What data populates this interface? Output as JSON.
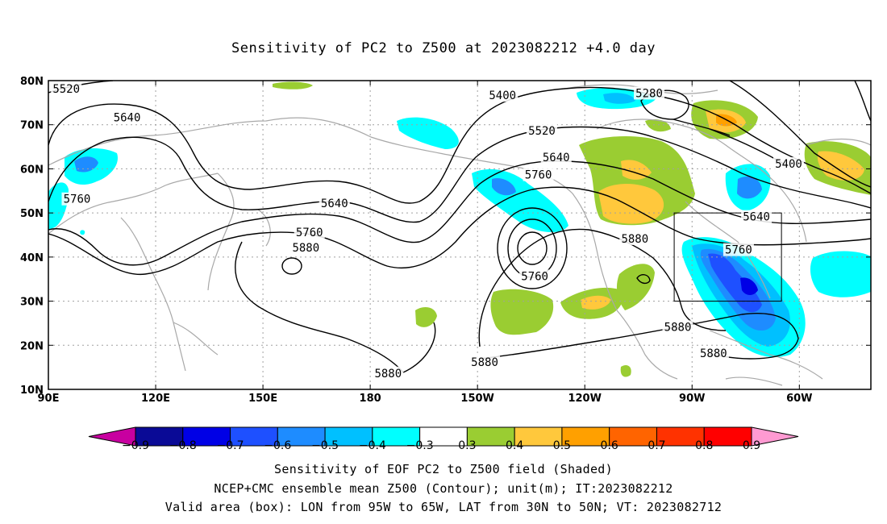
{
  "title": "Sensitivity of PC2 to Z500 at 2023082212 +4.0 day",
  "captions": {
    "line1": "Sensitivity of EOF PC2 to Z500 field (Shaded)",
    "line2": "NCEP+CMC ensemble mean Z500 (Contour); unit(m); IT:2023082212",
    "line3": "Valid area (box): LON from 95W to 65W, LAT from 30N to 50N; VT: 2023082712"
  },
  "axes": {
    "lat_labels": [
      "80N",
      "70N",
      "60N",
      "50N",
      "40N",
      "30N",
      "20N",
      "10N"
    ],
    "lon_labels": [
      "90E",
      "120E",
      "150E",
      "180",
      "150W",
      "120W",
      "90W",
      "60W"
    ]
  },
  "contour_labels": [
    {
      "text": "5520",
      "lon": 95,
      "lat": 78
    },
    {
      "text": "5640",
      "lon": 112,
      "lat": 71.5
    },
    {
      "text": "5760",
      "lon": 98,
      "lat": 53
    },
    {
      "text": "5400",
      "lon": 217,
      "lat": 76.5
    },
    {
      "text": "5520",
      "lon": 228,
      "lat": 68.5
    },
    {
      "text": "5640",
      "lon": 232,
      "lat": 62.5
    },
    {
      "text": "5760",
      "lon": 227,
      "lat": 58.5
    },
    {
      "text": "5640",
      "lon": 170,
      "lat": 52
    },
    {
      "text": "5760",
      "lon": 163,
      "lat": 45.5
    },
    {
      "text": "5880",
      "lon": 162,
      "lat": 42
    },
    {
      "text": "5760",
      "lon": 226,
      "lat": 35.5
    },
    {
      "text": "5880",
      "lon": 185,
      "lat": 13.5
    },
    {
      "text": "5880",
      "lon": 212,
      "lat": 16
    },
    {
      "text": "5280",
      "lon": 258,
      "lat": 77
    },
    {
      "text": "5400",
      "lon": 297,
      "lat": 61
    },
    {
      "text": "5640",
      "lon": 288,
      "lat": 49
    },
    {
      "text": "5760",
      "lon": 283,
      "lat": 41.5
    },
    {
      "text": "5880",
      "lon": 254,
      "lat": 44
    },
    {
      "text": "5880",
      "lon": 266,
      "lat": 24
    },
    {
      "text": "5880",
      "lon": 276,
      "lat": 18
    }
  ],
  "valid_box": {
    "lon_min": 265,
    "lon_max": 295,
    "lat_min": 30,
    "lat_max": 50
  },
  "colorbar": {
    "labels": [
      "-0.9",
      "-0.8",
      "-0.7",
      "-0.6",
      "-0.5",
      "-0.4",
      "-0.3",
      "0.3",
      "0.4",
      "0.5",
      "0.6",
      "0.7",
      "0.8",
      "0.9"
    ],
    "colors": [
      "#0a0a96",
      "#0000e6",
      "#1e50ff",
      "#1e8cff",
      "#00c0ff",
      "#00ffff",
      "#ffffff",
      "#9acd32",
      "#ffc83c",
      "#ffa000",
      "#ff6400",
      "#ff3200",
      "#ff0000"
    ],
    "low_arrow_color": "#c800a0",
    "high_arrow_color": "#ff9ad2"
  },
  "colors": {
    "contour": "#000000",
    "coast": "#a8a8a8",
    "grid": "#a0a0a0"
  }
}
